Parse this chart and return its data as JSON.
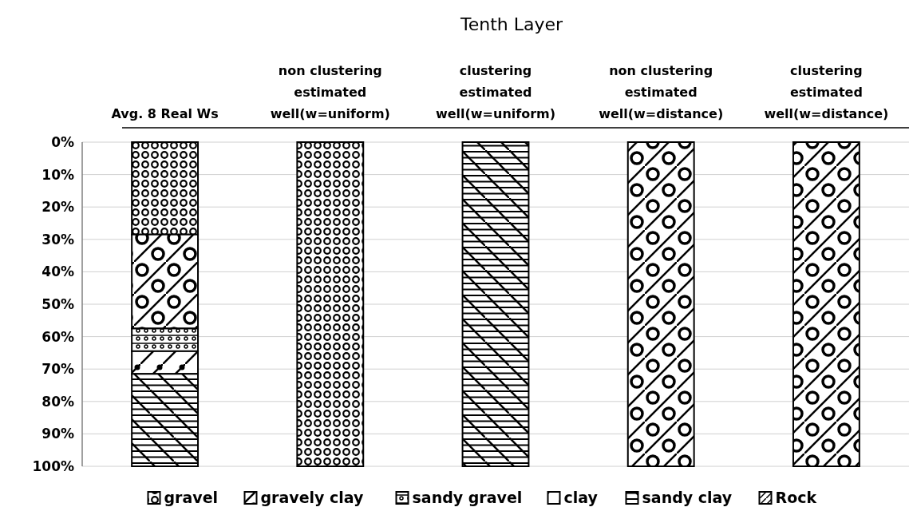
{
  "chart_data": {
    "type": "bar",
    "title": "Tenth Layer",
    "stacked": true,
    "categories": [
      "Avg. 8 Real Ws",
      "non clustering\nestimated\nwell(w=uniform)",
      "clustering\nestimated\nwell(w=uniform)",
      "non clustering\nestimated\nwell(w=distance)",
      "clustering\nestimated\nwell(w=distance)"
    ],
    "series": [
      {
        "name": "gravel",
        "color": "#000000",
        "values": [
          28.5,
          100,
          0,
          0,
          0
        ]
      },
      {
        "name": "gravely clay",
        "color": "#000000",
        "values": [
          29,
          0,
          0,
          100,
          100
        ]
      },
      {
        "name": "sandy gravel",
        "color": "#000000",
        "values": [
          7,
          0,
          0,
          0,
          0
        ]
      },
      {
        "name": "clay",
        "color": "#000000",
        "values": [
          7,
          0,
          0,
          0,
          0
        ]
      },
      {
        "name": "sandy clay",
        "color": "#000000",
        "values": [
          28.5,
          0,
          100,
          0,
          0
        ]
      },
      {
        "name": "Rock",
        "color": "#000000",
        "values": [
          0,
          0,
          0,
          0,
          0
        ]
      }
    ],
    "ylim": [
      100,
      0
    ],
    "yticks": [
      {
        "value": 0,
        "label": "0%"
      },
      {
        "value": 10,
        "label": "10%"
      },
      {
        "value": 20,
        "label": "20%"
      },
      {
        "value": 30,
        "label": "30%"
      },
      {
        "value": 40,
        "label": "40%"
      },
      {
        "value": 50,
        "label": "50%"
      },
      {
        "value": 60,
        "label": "60%"
      },
      {
        "value": 70,
        "label": "70%"
      },
      {
        "value": 80,
        "label": "80%"
      },
      {
        "value": 90,
        "label": "90%"
      },
      {
        "value": 100,
        "label": "100%"
      }
    ],
    "grid": "y",
    "legend": "bottom"
  }
}
